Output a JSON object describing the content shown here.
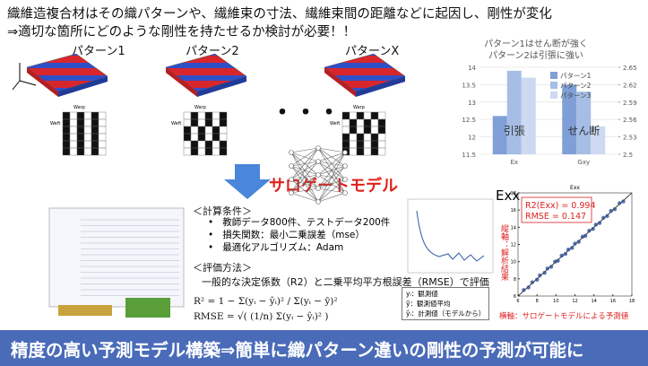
{
  "header": {
    "line1": "織維造複合材はその織パターンや、繊維束の寸法、繊維束間の距離などに起因し、剛性が変化",
    "line2": "⇒適切な箇所にどのような剛性を持たせるか検討が必要！！"
  },
  "patterns": {
    "labels": [
      "パターン1",
      "パターン2",
      "パターンX"
    ],
    "warp": "Warp",
    "weft": "Weft",
    "ellipsis": "・・・"
  },
  "model": {
    "title": "サロゲートモデル"
  },
  "conditions": {
    "heading": "＜計算条件＞",
    "items": [
      "教師データ800件、テストデータ200件",
      "損失関数：最小二乗誤差（mse）",
      "最適化アルゴリズム：Adam"
    ]
  },
  "evaluation": {
    "heading": "＜評価方法＞",
    "text": "一般的な決定係数（R2）と二乗平均平方根誤差（RMSE）で評価",
    "r2_formula": "R² = 1 − Σ(yᵢ − ŷᵢ)² / Σ(yᵢ − ȳ)²",
    "rmse_formula": "RMSE = √( (1/n) Σ(yᵢ − ŷᵢ)² )",
    "legend": [
      "yᵢ：観測値",
      "ȳ：観測値平均",
      "ŷᵢ：計測値（モデルから）"
    ]
  },
  "chart_data": [
    {
      "type": "bar",
      "title": [
        "パターン1はせん断が強く",
        "パターン2は引張に強い"
      ],
      "categories": [
        "Ex",
        "Gxy"
      ],
      "category_axes": [
        "y",
        "y2"
      ],
      "category_notes": [
        "引張",
        "せん断"
      ],
      "series": [
        {
          "name": "パターン1",
          "color": "#7f9fd6",
          "values": [
            12.6,
            2.62
          ]
        },
        {
          "name": "パターン2",
          "color": "#a6bde6",
          "values": [
            13.9,
            2.608
          ]
        },
        {
          "name": "パターン3",
          "color": "#ccd9f0",
          "values": [
            13.7,
            2.548
          ]
        }
      ],
      "ylim": [
        11.5,
        14
      ],
      "yticks": [
        11.5,
        12,
        12.5,
        13,
        13.5,
        14
      ],
      "y2lim": [
        2.5,
        2.65
      ],
      "y2ticks": [
        2.5,
        2.53,
        2.56,
        2.59,
        2.62,
        2.65
      ],
      "legend": "upper right"
    },
    {
      "type": "scatter",
      "label": "Exx",
      "title": "Exx",
      "annotations": [
        "R2(Exx) = 0.994",
        "RMSE = 0.147"
      ],
      "ylabel": "縦軸：解析結果",
      "xlabel": "横軸：サロゲートモデルによる予測値",
      "color": "#2e4f8f",
      "x": [
        6.6,
        7.1,
        7.5,
        8.0,
        8.3,
        8.8,
        9.1,
        9.5,
        9.9,
        10.2,
        10.6,
        11.0,
        11.3,
        11.7,
        12.0,
        12.4,
        12.8,
        13.1,
        13.5,
        13.9,
        14.2,
        14.6,
        15.0,
        15.4,
        15.8,
        16.2,
        16.7,
        17.1
      ],
      "values": [
        6.7,
        7.0,
        7.6,
        7.9,
        8.4,
        8.7,
        9.2,
        9.4,
        10.0,
        10.1,
        10.7,
        10.9,
        11.4,
        11.6,
        12.1,
        12.3,
        12.9,
        13.0,
        13.6,
        13.8,
        14.3,
        14.5,
        15.1,
        15.3,
        15.9,
        16.1,
        16.8,
        17.0
      ],
      "xlim": [
        6,
        18
      ],
      "ylim": [
        6,
        18
      ],
      "xticks": [
        6,
        8,
        10,
        12,
        14,
        16,
        18
      ],
      "yticks": [
        6,
        8,
        10,
        12,
        14,
        16,
        18
      ]
    }
  ],
  "footer": {
    "text": "精度の高い予測モデル構築⇒簡単に織パターン違いの剛性の予測が可能に"
  }
}
